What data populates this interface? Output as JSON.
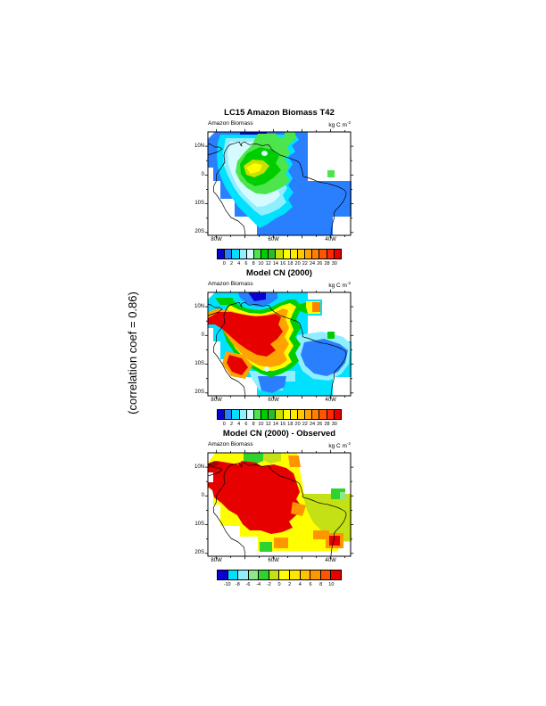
{
  "annotation": {
    "text": "(correlation coef =  0.86)"
  },
  "palettes": {
    "biomass": [
      "#0a00d2",
      "#2a7fff",
      "#00e1ff",
      "#90efff",
      "#d6fbff",
      "#4ce64c",
      "#00cd00",
      "#2db82d",
      "#c8e100",
      "#ffff00",
      "#ffeb00",
      "#ffc800",
      "#ffa300",
      "#ff7f00",
      "#ff5500",
      "#ff2a00",
      "#e60000"
    ],
    "difference": [
      "#0a00d2",
      "#00e1ff",
      "#90efff",
      "#8ce88c",
      "#2ed32e",
      "#c3e114",
      "#ffff00",
      "#ffe600",
      "#ffc300",
      "#ff9600",
      "#ff5500",
      "#e60000"
    ]
  },
  "panels": [
    {
      "id": "obs",
      "title": "LC15 Amazon Biomass T42",
      "left_label": "Amazon Biomass",
      "units_base": "kg C m",
      "units_sup": "-2",
      "lat_ticks": [
        "10N",
        "0",
        "10S",
        "20S"
      ],
      "lon_ticks": [
        "80W",
        "60W",
        "40W"
      ],
      "palette": "biomass",
      "cbar_labels": [
        "0",
        "2",
        "4",
        "6",
        "8",
        "10",
        "12",
        "14",
        "16",
        "18",
        "20",
        "22",
        "24",
        "26",
        "28",
        "30"
      ]
    },
    {
      "id": "model",
      "title": "Model CN (2000)",
      "left_label": "Amazon Biomass",
      "units_base": "kg C m",
      "units_sup": "-2",
      "lat_ticks": [
        "10N",
        "0",
        "10S",
        "20S"
      ],
      "lon_ticks": [
        "80W",
        "60W",
        "40W"
      ],
      "palette": "biomass",
      "cbar_labels": [
        "0",
        "2",
        "4",
        "6",
        "8",
        "10",
        "12",
        "14",
        "16",
        "18",
        "20",
        "22",
        "24",
        "26",
        "28",
        "30"
      ]
    },
    {
      "id": "diff",
      "title": "Model CN (2000) - Observed",
      "left_label": "Amazon Biomass",
      "units_base": "kg C m",
      "units_sup": "-2",
      "lat_ticks": [
        "10N",
        "0",
        "10S",
        "20S"
      ],
      "lon_ticks": [
        "80W",
        "60W",
        "40W"
      ],
      "palette": "difference",
      "cbar_labels": [
        "-10",
        "-8",
        "-6",
        "-4",
        "-2",
        "0",
        "2",
        "4",
        "6",
        "8",
        "10"
      ]
    }
  ],
  "chart_data": [
    {
      "type": "heatmap",
      "title": "LC15 Amazon Biomass T42",
      "variable": "Amazon Biomass",
      "units": "kg C m-2",
      "x_ticks": [
        "80W",
        "60W",
        "40W"
      ],
      "y_ticks": [
        "10N",
        "0",
        "10S",
        "20S"
      ],
      "x_range": [
        "83W",
        "33W"
      ],
      "y_range": [
        "21S",
        "15N"
      ],
      "levels": [
        0,
        2,
        4,
        6,
        8,
        10,
        12,
        14,
        16,
        18,
        20,
        22,
        24,
        26,
        28,
        30
      ],
      "legend_position": "bottom",
      "description": "Observed biomass: 0-4 kg C m-2 along northern edge, eastern Amazon and southern margins (blue); 4-8 transition (cyan); 8-14 over central Amazon (green); local maximum about 14-16 kg C m-2 near 68W, 3S (yellow core)."
    },
    {
      "type": "heatmap",
      "title": "Model CN (2000)",
      "variable": "Amazon Biomass",
      "units": "kg C m-2",
      "x_ticks": [
        "80W",
        "60W",
        "40W"
      ],
      "y_ticks": [
        "10N",
        "0",
        "10S",
        "20S"
      ],
      "x_range": [
        "83W",
        "33W"
      ],
      "y_range": [
        "21S",
        "15N"
      ],
      "levels": [
        0,
        2,
        4,
        6,
        8,
        10,
        12,
        14,
        16,
        18,
        20,
        22,
        24,
        26,
        28,
        30
      ],
      "legend_position": "bottom",
      "description": "Modeled biomass: broad maximum greater than 28 kg C m-2 (red) over western and central Amazon, 16-24 ring (yellow-orange), 8-14 (green) outer ring, 0-6 (blue/cyan) over northeast Brazil, the north coast and south-central areas."
    },
    {
      "type": "heatmap",
      "title": "Model CN (2000) - Observed",
      "variable": "Amazon Biomass difference",
      "units": "kg C m-2",
      "x_ticks": [
        "80W",
        "60W",
        "40W"
      ],
      "y_ticks": [
        "10N",
        "0",
        "10S",
        "20S"
      ],
      "x_range": [
        "83W",
        "33W"
      ],
      "y_range": [
        "21S",
        "15N"
      ],
      "levels": [
        -10,
        -8,
        -6,
        -4,
        -2,
        0,
        2,
        4,
        6,
        8,
        10
      ],
      "legend_position": "bottom",
      "description": "Model minus observed: +10 kg C m-2 or more (red) over most of the western/central Amazon, +2 to +6 (yellow/orange) over eastern and southern Brazil, small pockets of -2 to -4 (green) along the north coast, northeast coast and one cell in the south."
    }
  ],
  "note": "(correlation coef =  0.86)"
}
